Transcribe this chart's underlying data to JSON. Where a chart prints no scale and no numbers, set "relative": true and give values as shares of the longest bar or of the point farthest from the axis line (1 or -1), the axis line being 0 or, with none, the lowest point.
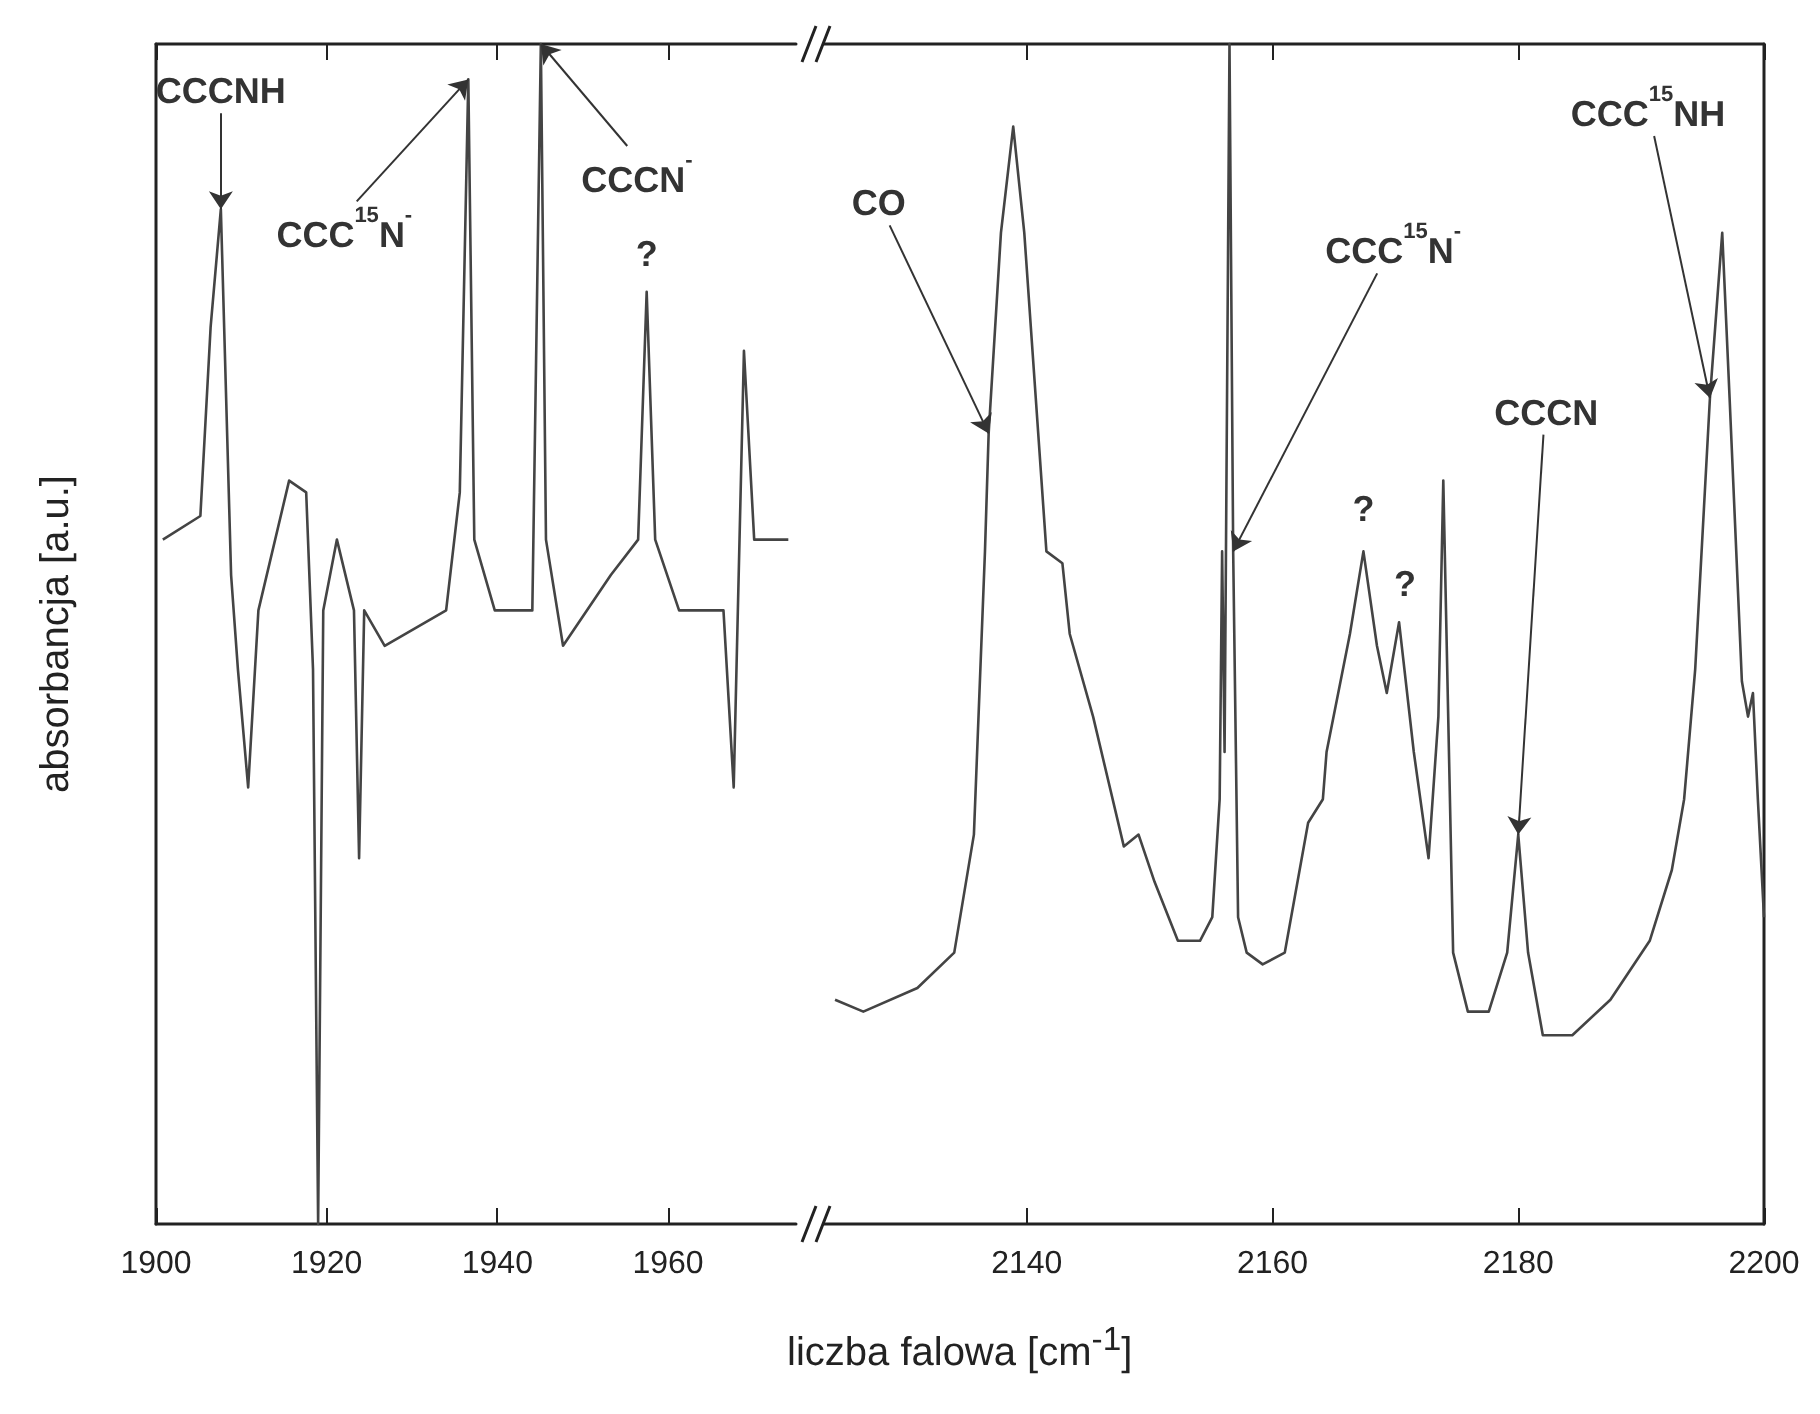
{
  "chart_data": [
    {
      "type": "line",
      "relative": true,
      "ylabel": "absorbancja [a.u.]",
      "xlim": [
        1900,
        1975
      ],
      "xticks": [
        1900,
        1920,
        1940,
        1960
      ],
      "tick_labels": "x",
      "marker": "none",
      "color": "#444444",
      "x": [
        1900.8,
        1905.2,
        1906.4,
        1907.6,
        1908.8,
        1909.6,
        1910.8,
        1912,
        1915.6,
        1917.6,
        1918.4,
        1919,
        1919.6,
        1921.2,
        1923.2,
        1923.8,
        1924.4,
        1926.8,
        1934,
        1935.6,
        1936.6,
        1937.3,
        1939.7,
        1944.1,
        1944.6,
        1945.1,
        1945.7,
        1947.7,
        1953.3,
        1956.5,
        1957.5,
        1958.5,
        1961.3,
        1966.5,
        1967.7,
        1968.9,
        1970.1,
        1974.1
      ],
      "values": [
        0.58,
        0.6,
        0.76,
        0.86,
        0.55,
        0.47,
        0.37,
        0.52,
        0.63,
        0.62,
        0.47,
        0,
        0.52,
        0.58,
        0.52,
        0.31,
        0.52,
        0.49,
        0.52,
        0.62,
        0.97,
        0.58,
        0.52,
        0.52,
        0.76,
        1,
        0.58,
        0.49,
        0.55,
        0.58,
        0.79,
        0.58,
        0.52,
        0.52,
        0.37,
        0.74,
        0.58,
        0.58
      ],
      "annotations": [
        {
          "text": "CCCNH",
          "x": 1907.6,
          "y": 0.86
        },
        {
          "text": "CCC$^{15}$N$^{-}$",
          "x": 1936.6,
          "y": 0.97
        },
        {
          "text": "CCCN$^{-}$",
          "x": 1945.1,
          "y": 1
        },
        {
          "text": "?",
          "x": 1957.5,
          "y": 0.79
        }
      ]
    },
    {
      "type": "line",
      "relative": true,
      "xlabel": "liczba falowa [cm$^{-1}$]",
      "xlim": [
        2123.5,
        2200
      ],
      "xticks": [
        2140,
        2160,
        2180,
        2200
      ],
      "tick_labels": "x",
      "marker": "none",
      "color": "#444444",
      "x": [
        2124.4,
        2126.7,
        2131.1,
        2134.1,
        2135.7,
        2136.6,
        2136.9,
        2137.9,
        2138.9,
        2139.8,
        2141,
        2141.6,
        2142.9,
        2143.5,
        2145.4,
        2147.9,
        2149.1,
        2150.4,
        2152.3,
        2154.1,
        2155.1,
        2155.7,
        2155.9,
        2156.1,
        2156.5,
        2156.8,
        2157.2,
        2157.9,
        2159.2,
        2161,
        2162.9,
        2164.1,
        2164.4,
        2166.3,
        2167.4,
        2168.5,
        2169.3,
        2170.3,
        2171.5,
        2172.7,
        2173.5,
        2173.9,
        2174.3,
        2174.7,
        2175.9,
        2177.6,
        2179.1,
        2180,
        2180.8,
        2182,
        2184.4,
        2187.5,
        2190.7,
        2192.5,
        2193.5,
        2194.4,
        2195.6,
        2196.6,
        2197.2,
        2198.2,
        2198.7,
        2199.1,
        2199.5,
        2200
      ],
      "values": [
        0.19,
        0.18,
        0.2,
        0.23,
        0.33,
        0.57,
        0.67,
        0.84,
        0.93,
        0.84,
        0.66,
        0.57,
        0.56,
        0.5,
        0.43,
        0.32,
        0.33,
        0.29,
        0.24,
        0.24,
        0.26,
        0.36,
        0.57,
        0.4,
        1,
        0.57,
        0.26,
        0.23,
        0.22,
        0.23,
        0.34,
        0.36,
        0.4,
        0.5,
        0.57,
        0.49,
        0.45,
        0.51,
        0.4,
        0.31,
        0.43,
        0.63,
        0.43,
        0.23,
        0.18,
        0.18,
        0.23,
        0.33,
        0.23,
        0.16,
        0.16,
        0.19,
        0.24,
        0.3,
        0.36,
        0.47,
        0.7,
        0.84,
        0.7,
        0.46,
        0.43,
        0.45,
        0.36,
        0.26
      ],
      "annotations": [
        {
          "text": "CO",
          "x": 2136.9,
          "y": 0.67
        },
        {
          "text": "CCC$^{15}$N$^{-}$",
          "x": 2156.8,
          "y": 0.57
        },
        {
          "text": "?",
          "x": 2167.4,
          "y": 0.57
        },
        {
          "text": "?",
          "x": 2170.3,
          "y": 0.51
        },
        {
          "text": "CCCN",
          "x": 2180,
          "y": 0.33
        },
        {
          "text": "CCC$^{15}$NH",
          "x": 2195.6,
          "y": 0.7
        }
      ]
    }
  ]
}
